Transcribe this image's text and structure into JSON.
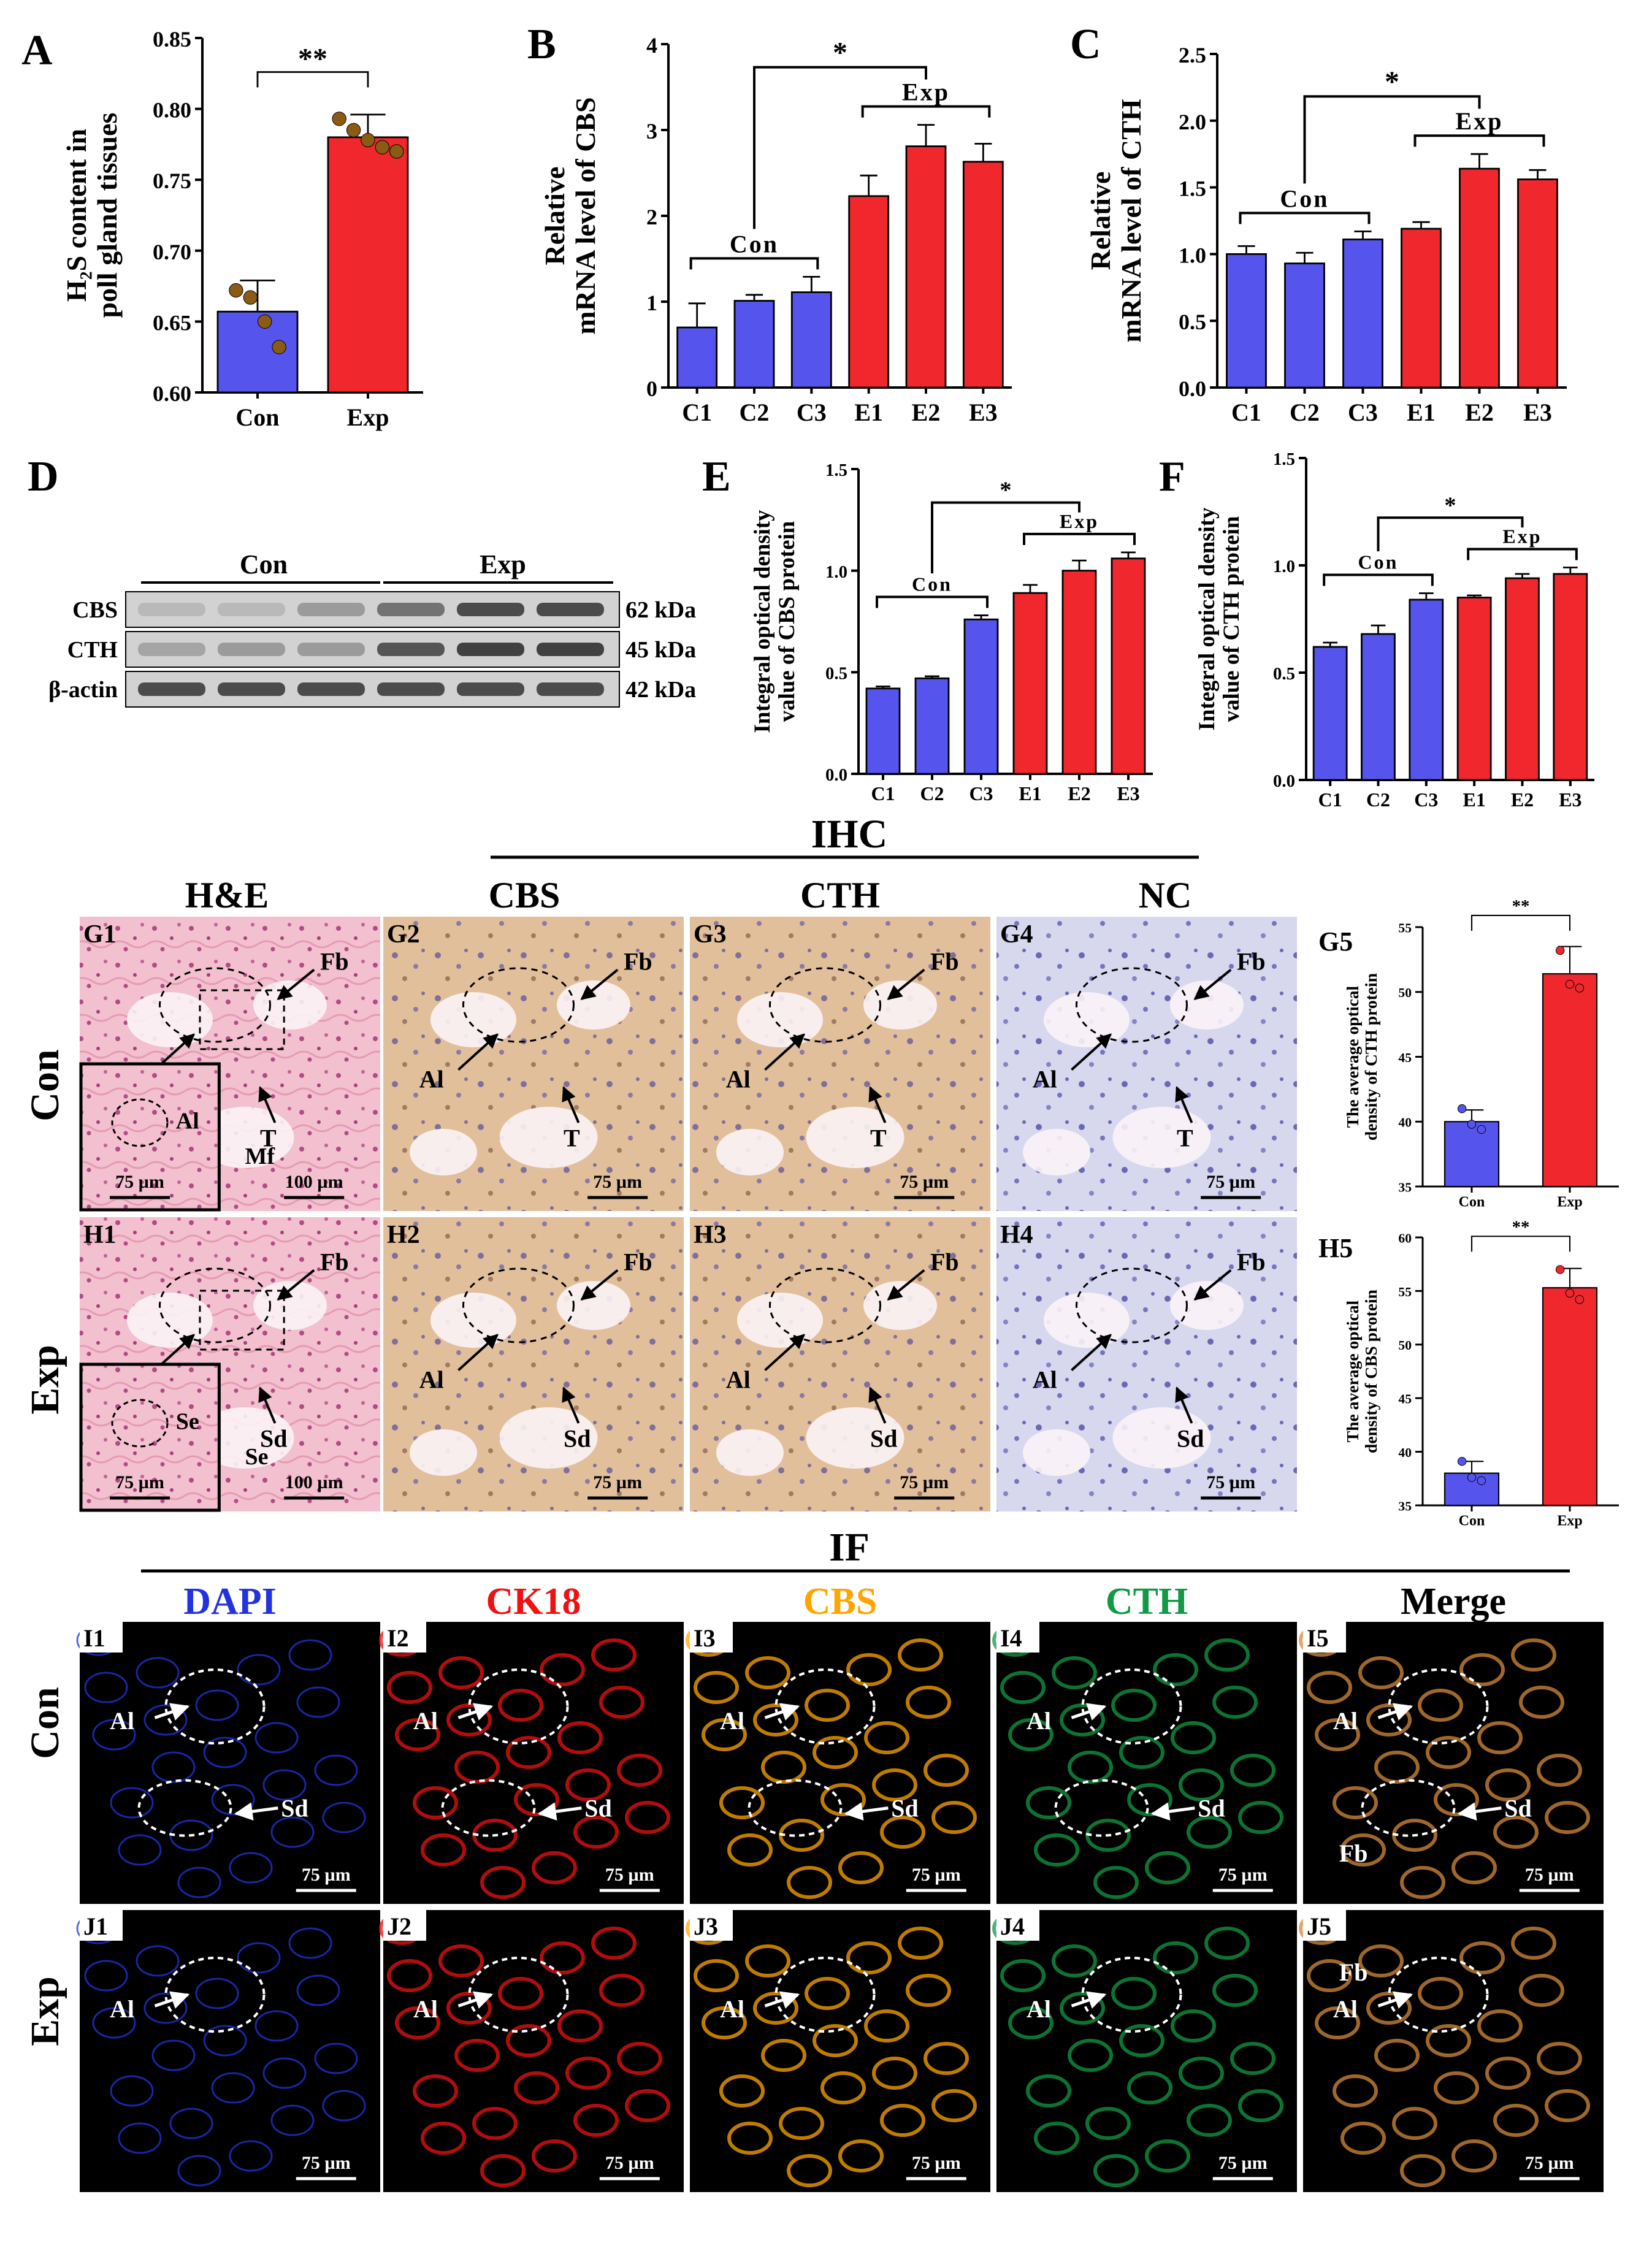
{
  "colors": {
    "con": "#5555ee",
    "exp": "#f0282d",
    "dot": "#8b5a14",
    "dapi": "#2233dd",
    "ck18": "#ee1111",
    "cbs": "#ffa500",
    "cth": "#119944"
  },
  "chart_data": [
    {
      "id": "A",
      "panel": "A",
      "type": "bar",
      "title": "",
      "ylabel": "H₂S content in poll gland tissues",
      "categories": [
        "Con",
        "Exp"
      ],
      "values": [
        0.657,
        0.78
      ],
      "errors": [
        0.022,
        0.016
      ],
      "points": [
        [
          0.672,
          0.667,
          0.65,
          0.632
        ],
        [
          0.793,
          0.785,
          0.778,
          0.773,
          0.77
        ]
      ],
      "ylim": [
        0.6,
        0.85
      ],
      "yticks": [
        "0.60",
        "0.65",
        "0.70",
        "0.75",
        "0.80",
        "0.85"
      ],
      "sig": "**",
      "groups": []
    },
    {
      "id": "B",
      "panel": "B",
      "type": "bar",
      "ylabel": "Relative mRNA level of CBS",
      "categories": [
        "C1",
        "C2",
        "C3",
        "E1",
        "E2",
        "E3"
      ],
      "values": [
        0.7,
        1.01,
        1.11,
        2.23,
        2.81,
        2.63
      ],
      "errors": [
        0.28,
        0.07,
        0.18,
        0.24,
        0.25,
        0.21
      ],
      "ylim": [
        0,
        4
      ],
      "yticks": [
        "0",
        "1",
        "2",
        "3",
        "4"
      ],
      "sig": "*",
      "groups": [
        "Con",
        "Exp"
      ]
    },
    {
      "id": "C",
      "panel": "C",
      "type": "bar",
      "ylabel": "Relative mRNA level of CTH",
      "categories": [
        "C1",
        "C2",
        "C3",
        "E1",
        "E2",
        "E3"
      ],
      "values": [
        1.0,
        0.93,
        1.11,
        1.19,
        1.64,
        1.56
      ],
      "errors": [
        0.06,
        0.08,
        0.06,
        0.05,
        0.11,
        0.07
      ],
      "ylim": [
        0,
        2.5
      ],
      "yticks": [
        "0.0",
        "0.5",
        "1.0",
        "1.5",
        "2.0",
        "2.5"
      ],
      "sig": "*",
      "groups": [
        "Con",
        "Exp"
      ]
    },
    {
      "id": "E",
      "panel": "E",
      "type": "bar",
      "ylabel": "Integral optical density value of CBS protein",
      "categories": [
        "C1",
        "C2",
        "C3",
        "E1",
        "E2",
        "E3"
      ],
      "values": [
        0.42,
        0.47,
        0.76,
        0.89,
        1.0,
        1.06
      ],
      "errors": [
        0.01,
        0.01,
        0.02,
        0.04,
        0.05,
        0.03
      ],
      "ylim": [
        0,
        1.5
      ],
      "yticks": [
        "0.0",
        "0.5",
        "1.0",
        "1.5"
      ],
      "sig": "*",
      "groups": [
        "Con",
        "Exp"
      ]
    },
    {
      "id": "F",
      "panel": "F",
      "type": "bar",
      "ylabel": "Integral optical density value of CTH protein",
      "categories": [
        "C1",
        "C2",
        "C3",
        "E1",
        "E2",
        "E3"
      ],
      "values": [
        0.62,
        0.68,
        0.84,
        0.85,
        0.94,
        0.96
      ],
      "errors": [
        0.02,
        0.04,
        0.03,
        0.01,
        0.02,
        0.03
      ],
      "ylim": [
        0,
        1.5
      ],
      "yticks": [
        "0.0",
        "0.5",
        "1.0",
        "1.5"
      ],
      "sig": "*",
      "groups": [
        "Con",
        "Exp"
      ]
    },
    {
      "id": "G5",
      "panel": "G5",
      "type": "bar",
      "ylabel": "The average optical density of CTH protein",
      "categories": [
        "Con",
        "Exp"
      ],
      "values": [
        40.0,
        51.4
      ],
      "errors": [
        0.9,
        2.1
      ],
      "points": [
        [
          41.0,
          39.8,
          39.4
        ],
        [
          53.2,
          50.6,
          50.3
        ]
      ],
      "ylim": [
        35,
        55
      ],
      "yticks": [
        "35",
        "40",
        "45",
        "50",
        "55"
      ],
      "sig": "**",
      "groups": []
    },
    {
      "id": "H5",
      "panel": "H5",
      "type": "bar",
      "ylabel": "The average optical density of CBS protein",
      "categories": [
        "Con",
        "Exp"
      ],
      "values": [
        38.0,
        55.3
      ],
      "errors": [
        1.1,
        1.8
      ],
      "points": [
        [
          39.1,
          37.6,
          37.3
        ],
        [
          57.0,
          54.8,
          54.2
        ]
      ],
      "ylim": [
        35,
        60
      ],
      "yticks": [
        "35",
        "40",
        "45",
        "50",
        "55",
        "60"
      ],
      "sig": "**",
      "groups": []
    }
  ],
  "western": {
    "panel": "D",
    "groups": [
      "Con",
      "Exp"
    ],
    "rows": [
      {
        "name": "CBS",
        "kda": "62 kDa"
      },
      {
        "name": "CTH",
        "kda": "45 kDa"
      },
      {
        "name": "β-actin",
        "kda": "42 kDa"
      }
    ]
  },
  "ihc": {
    "title": "IHC",
    "he_title": "H&E",
    "cols": [
      "CBS",
      "CTH",
      "NC"
    ],
    "rows": [
      "Con",
      "Exp"
    ],
    "g_labels": [
      "G1",
      "G2",
      "G3",
      "G4"
    ],
    "h_labels": [
      "H1",
      "H2",
      "H3",
      "H4"
    ],
    "scale75": "75 µm",
    "scale100": "100 µm",
    "ann": {
      "T": "T",
      "Fb": "Fb",
      "Sd": "Sd",
      "Al": "Al",
      "Mf": "Mf",
      "Se": "Se"
    }
  },
  "if": {
    "title": "IF",
    "cols": [
      "DAPI",
      "CK18",
      "CBS",
      "CTH",
      "Merge"
    ],
    "rows": [
      "Con",
      "Exp"
    ],
    "i_labels": [
      "I1",
      "I2",
      "I3",
      "I4",
      "I5"
    ],
    "j_labels": [
      "J1",
      "J2",
      "J3",
      "J4",
      "J5"
    ],
    "scale": "75 µm"
  }
}
